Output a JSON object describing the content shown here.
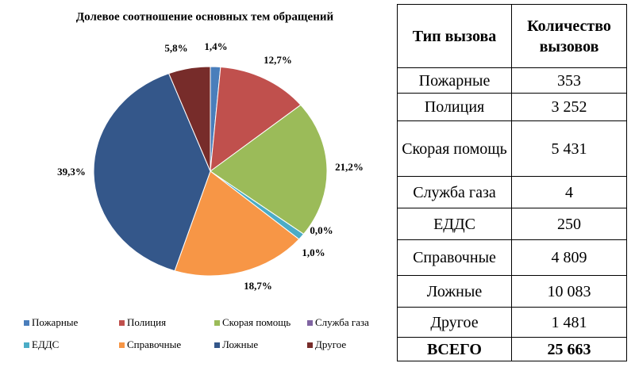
{
  "chart_data": {
    "type": "pie",
    "title": "Долевое соотношение основных тем обращений",
    "categories": [
      "Пожарные",
      "Полиция",
      "Скорая помощь",
      "Служба газа",
      "ЕДДС",
      "Справочные",
      "Ложные",
      "Другое"
    ],
    "values": [
      1.4,
      12.7,
      21.2,
      0.0,
      1.0,
      18.7,
      39.3,
      5.8
    ],
    "value_labels": [
      "1,4%",
      "12,7%",
      "21,2%",
      "0,0%",
      "1,0%",
      "18,7%",
      "39,3%",
      "5,8%"
    ],
    "colors": [
      "#4a7ebb",
      "#c0504d",
      "#9bbb59",
      "#8064a2",
      "#4bacc6",
      "#f79646",
      "#34578a",
      "#772c2a"
    ],
    "legend": "bottom"
  },
  "table": {
    "header": [
      "Тип вызова",
      "Количество вызовов"
    ],
    "rows": [
      [
        "Пожарные",
        "353"
      ],
      [
        "Полиция",
        "3 252"
      ],
      [
        "Скорая помощь",
        "5 431"
      ],
      [
        "Служба газа",
        "4"
      ],
      [
        "ЕДДС",
        "250"
      ],
      [
        "Справочные",
        "4 809"
      ],
      [
        "Ложные",
        "10 083"
      ],
      [
        "Другое",
        "1 481"
      ],
      [
        "ВСЕГО",
        "25 663"
      ]
    ]
  }
}
